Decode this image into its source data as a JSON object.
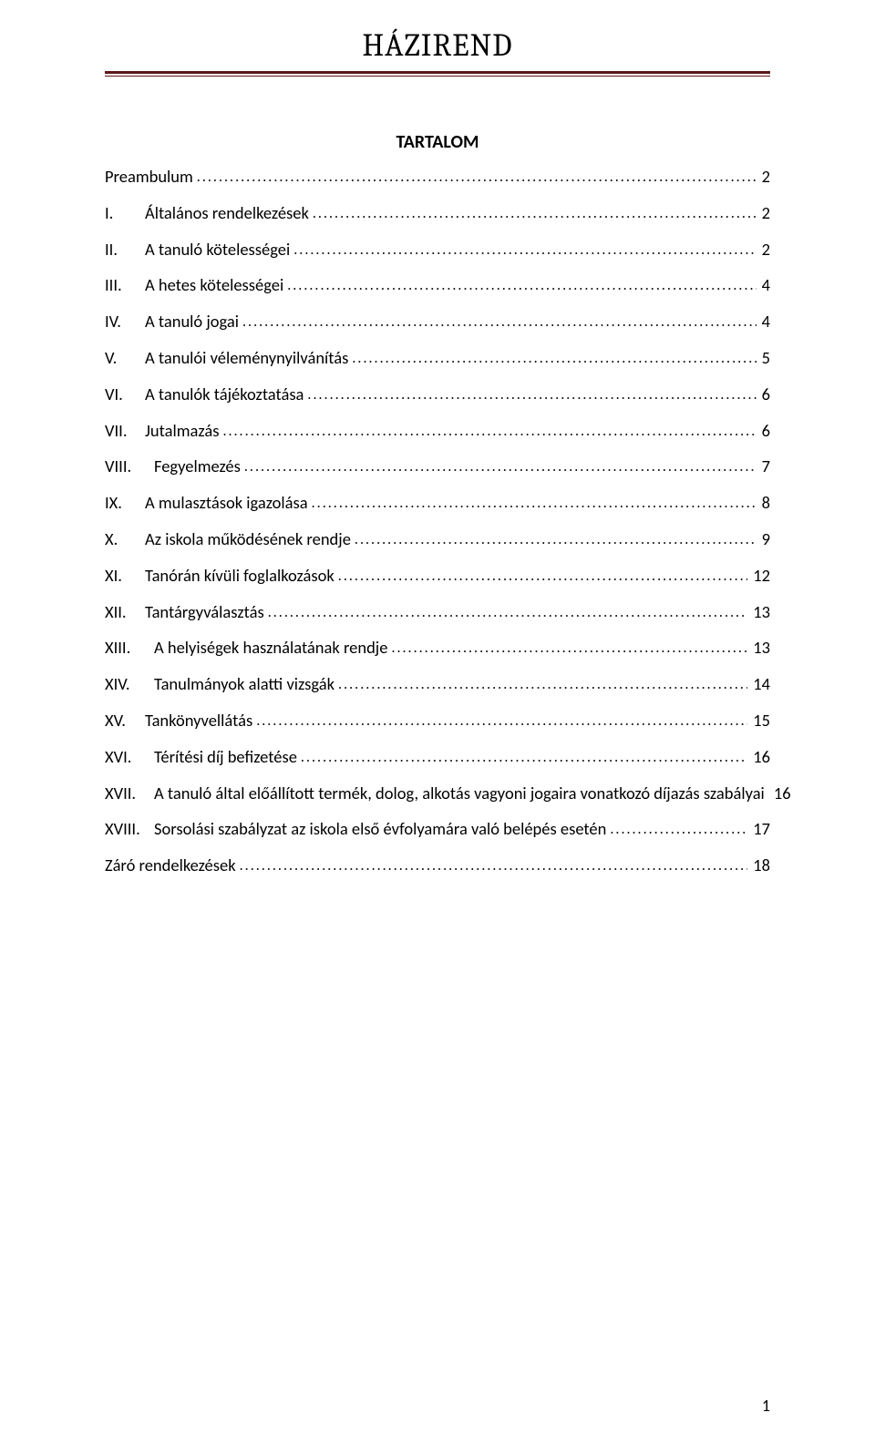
{
  "document": {
    "header_title": "HÁZIREND",
    "toc_title": "TARTALOM",
    "page_number": "1",
    "header_rule_color_top": "#5b1818",
    "header_rule_color_bottom": "#5b1818",
    "font_body": "Calibri",
    "font_header": "Cambria"
  },
  "toc": [
    {
      "num": "",
      "label": "Preambulum",
      "page": "2"
    },
    {
      "num": "I.",
      "label": "Általános rendelkezések",
      "page": "2"
    },
    {
      "num": "II.",
      "label": "A tanuló kötelességei",
      "page": "2"
    },
    {
      "num": "III.",
      "label": "A hetes kötelességei",
      "page": "4"
    },
    {
      "num": "IV.",
      "label": "A tanuló jogai",
      "page": "4"
    },
    {
      "num": "V.",
      "label": "A tanulói véleménynyilvánítás",
      "page": "5"
    },
    {
      "num": "VI.",
      "label": "A tanulók tájékoztatása",
      "page": "6"
    },
    {
      "num": "VII.",
      "label": "Jutalmazás",
      "page": "6"
    },
    {
      "num": "VIII.",
      "label": "Fegyelmezés",
      "page": "7"
    },
    {
      "num": "IX.",
      "label": "A mulasztások igazolása",
      "page": "8"
    },
    {
      "num": "X.",
      "label": "Az iskola működésének rendje",
      "page": "9"
    },
    {
      "num": "XI.",
      "label": "Tanórán kívüli foglalkozások",
      "page": "12"
    },
    {
      "num": "XII.",
      "label": "Tantárgyválasztás",
      "page": "13"
    },
    {
      "num": "XIII.",
      "label": "A helyiségek használatának rendje",
      "page": "13"
    },
    {
      "num": "XIV.",
      "label": "Tanulmányok alatti vizsgák",
      "page": "14"
    },
    {
      "num": "XV.",
      "label": "Tankönyvellátás",
      "page": "15"
    },
    {
      "num": "XVI.",
      "label": "Térítési díj befizetése",
      "page": "16"
    },
    {
      "num": "XVII.",
      "label": "A tanuló által előállított termék, dolog, alkotás vagyoni jogaira vonatkozó díjazás szabályai",
      "page": "16"
    },
    {
      "num": "XVIII.",
      "label": "Sorsolási szabályzat az iskola első évfolyamára való belépés esetén",
      "page": "17"
    },
    {
      "num": "",
      "label": "Záró rendelkezések",
      "page": "18"
    }
  ]
}
